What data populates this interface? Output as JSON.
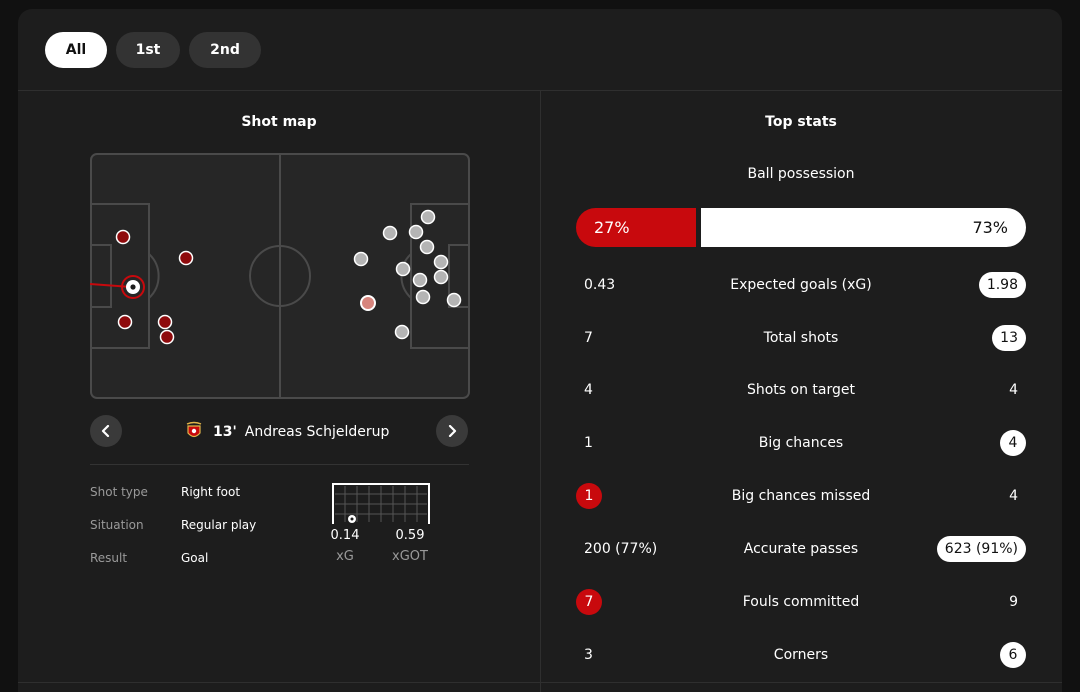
{
  "tabs": [
    {
      "label": "All",
      "active": true
    },
    {
      "label": "1st",
      "active": false
    },
    {
      "label": "2nd",
      "active": false
    }
  ],
  "shot_map": {
    "title": "Shot map",
    "colors": {
      "home": "#c8090d",
      "away": "#b4b4b4",
      "selected_ring": "#c8090d"
    },
    "selected_shot": {
      "minute": "13'",
      "player": "Andreas Schjelderup",
      "club_icon": "benfica-crest-icon",
      "details": [
        {
          "label": "Shot type",
          "value": "Right foot"
        },
        {
          "label": "Situation",
          "value": "Regular play"
        },
        {
          "label": "Result",
          "value": "Goal"
        }
      ],
      "xg": {
        "value": "0.14",
        "label": "xG"
      },
      "xgot": {
        "value": "0.59",
        "label": "xGOT"
      }
    },
    "nav": {
      "prev_icon": "chevron-left-icon",
      "next_icon": "chevron-right-icon"
    }
  },
  "top_stats": {
    "title": "Top stats",
    "possession": {
      "label": "Ball possession",
      "home": "27%",
      "away": "73%",
      "home_fraction": 0.27
    },
    "rows": [
      {
        "label": "Expected goals (xG)",
        "home": "0.43",
        "away": "1.98",
        "home_highlight": false,
        "away_highlight": true
      },
      {
        "label": "Total shots",
        "home": "7",
        "away": "13",
        "home_highlight": false,
        "away_highlight": true
      },
      {
        "label": "Shots on target",
        "home": "4",
        "away": "4",
        "home_highlight": false,
        "away_highlight": false
      },
      {
        "label": "Big chances",
        "home": "1",
        "away": "4",
        "home_highlight": false,
        "away_highlight": true
      },
      {
        "label": "Big chances missed",
        "home": "1",
        "away": "4",
        "home_highlight": true,
        "away_highlight": false
      },
      {
        "label": "Accurate passes",
        "home": "200 (77%)",
        "away": "623 (91%)",
        "home_highlight": false,
        "away_highlight": true
      },
      {
        "label": "Fouls committed",
        "home": "7",
        "away": "9",
        "home_highlight": true,
        "away_highlight": false
      },
      {
        "label": "Corners",
        "home": "3",
        "away": "6",
        "home_highlight": false,
        "away_highlight": true
      }
    ]
  }
}
